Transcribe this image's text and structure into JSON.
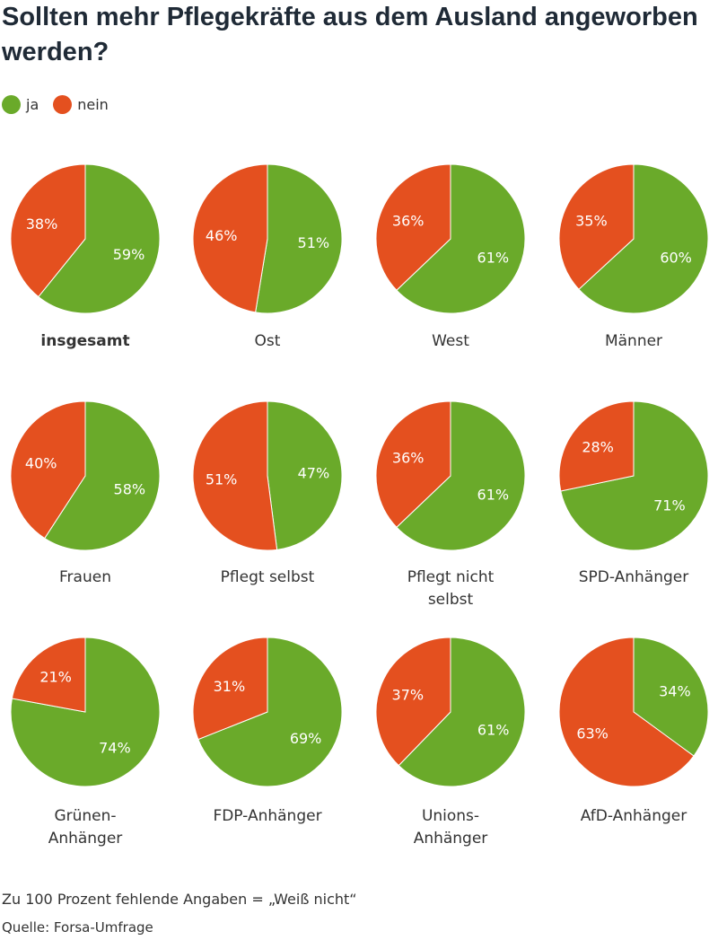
{
  "title": "Sollten mehr Pflegekräfte aus dem Ausland angeworben werden?",
  "legend": [
    {
      "label": "ja",
      "color": "#6aaa2a"
    },
    {
      "label": "nein",
      "color": "#e4501f"
    }
  ],
  "colors": {
    "ja": "#6aaa2a",
    "nein": "#e4501f"
  },
  "chart_data": {
    "type": "pie",
    "title": "Sollten mehr Pflegekräfte aus dem Ausland angeworben werden?",
    "series_names": [
      "ja",
      "nein"
    ],
    "pies": [
      {
        "label": "insgesamt",
        "ja": 59,
        "nein": 38,
        "bold": true
      },
      {
        "label": "Ost",
        "ja": 51,
        "nein": 46
      },
      {
        "label": "West",
        "ja": 61,
        "nein": 36
      },
      {
        "label": "Männer",
        "ja": 60,
        "nein": 35
      },
      {
        "label": "Frauen",
        "ja": 58,
        "nein": 40
      },
      {
        "label": "Pflegt selbst",
        "ja": 47,
        "nein": 51
      },
      {
        "label": "Pflegt nicht selbst",
        "ja": 61,
        "nein": 36
      },
      {
        "label": "SPD-Anhänger",
        "ja": 71,
        "nein": 28
      },
      {
        "label": "Grünen-Anhänger",
        "ja": 74,
        "nein": 21
      },
      {
        "label": "FDP-Anhänger",
        "ja": 69,
        "nein": 31
      },
      {
        "label": "Unions-Anhänger",
        "ja": 61,
        "nein": 37
      },
      {
        "label": "AfD-Anhänger",
        "ja": 34,
        "nein": 63
      }
    ]
  },
  "footer": {
    "note": "Zu 100 Prozent fehlende Angaben = „Weiß nicht“",
    "source": "Quelle: Forsa-Umfrage"
  }
}
